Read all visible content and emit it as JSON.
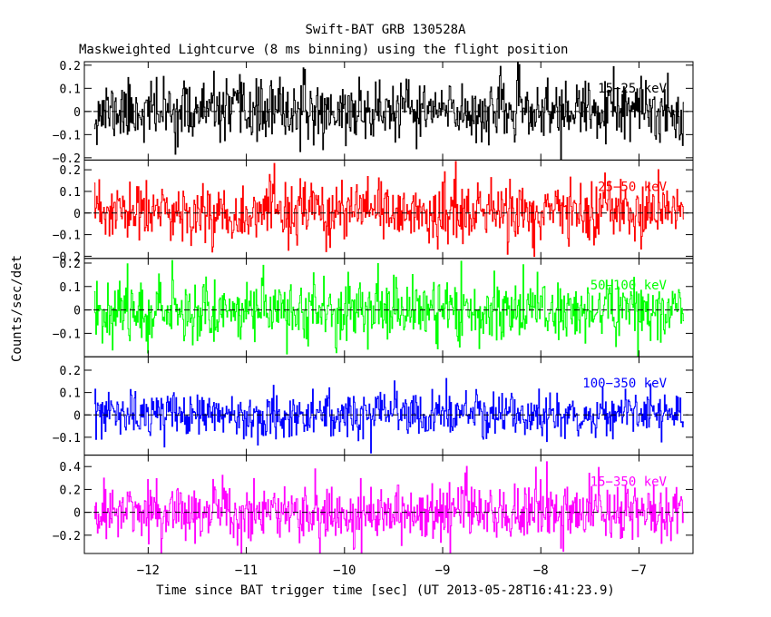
{
  "chart_data": {
    "type": "line",
    "title": "Swift-BAT GRB 130528A",
    "subtitle": "Maskweighted Lightcurve (8 ms binning) using the flight position",
    "xlabel": "Time since BAT trigger time [sec] (UT 2013-05-28T16:41:23.9)",
    "ylabel": "Counts/sec/det",
    "xlim": [
      -12.65,
      -6.45
    ],
    "x_range": [
      -12.55,
      -6.55
    ],
    "bin_width": 0.008,
    "xticks": [
      -12,
      -11,
      -10,
      -9,
      -8,
      -7
    ],
    "xtick_labels": [
      "−12",
      "−11",
      "−10",
      "−9",
      "−8",
      "−7"
    ],
    "grid": false,
    "panels": [
      {
        "name": "15−25 keV",
        "color": "#000000",
        "ylim": [
          -0.21,
          0.215
        ],
        "yticks": [
          -0.2,
          -0.1,
          0,
          0.1,
          0.2
        ],
        "ytick_labels": [
          "−0.2",
          "−0.1",
          "0",
          "0.1",
          "0.2"
        ],
        "noise_sigma": 0.065,
        "seed": 11
      },
      {
        "name": "25−50 keV",
        "color": "#ff0000",
        "ylim": [
          -0.21,
          0.245
        ],
        "yticks": [
          -0.2,
          -0.1,
          0,
          0.1,
          0.2
        ],
        "ytick_labels": [
          "−0.2",
          "−0.1",
          "0",
          "0.1",
          "0.2"
        ],
        "noise_sigma": 0.07,
        "seed": 23
      },
      {
        "name": "50−100 keV",
        "color": "#00ff00",
        "ylim": [
          -0.2,
          0.22
        ],
        "yticks": [
          -0.1,
          0,
          0.1,
          0.2
        ],
        "ytick_labels": [
          "−0.1",
          "0",
          "0.1",
          "0.2"
        ],
        "noise_sigma": 0.068,
        "seed": 37
      },
      {
        "name": "100−350 keV",
        "color": "#0000ff",
        "ylim": [
          -0.18,
          0.26
        ],
        "yticks": [
          -0.1,
          0,
          0.1,
          0.2
        ],
        "ytick_labels": [
          "−0.1",
          "0",
          "0.1",
          "0.2"
        ],
        "noise_sigma": 0.05,
        "seed": 53
      },
      {
        "name": "15−350 keV",
        "color": "#ff00ff",
        "ylim": [
          -0.36,
          0.5
        ],
        "yticks": [
          -0.2,
          0,
          0.2,
          0.4
        ],
        "ytick_labels": [
          "−0.2",
          "0",
          "0.2",
          "0.4"
        ],
        "noise_sigma": 0.13,
        "seed": 71
      }
    ]
  }
}
